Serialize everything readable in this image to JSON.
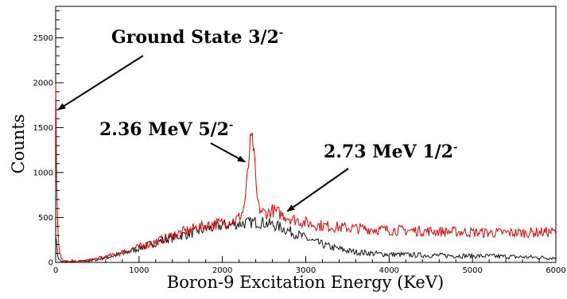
{
  "chart_data": {
    "type": "line",
    "title": "",
    "xlabel": "Boron-9 Excitation Energy (KeV)",
    "ylabel": "Counts",
    "xlim": [
      0,
      6000
    ],
    "ylim": [
      0,
      2850
    ],
    "xticks": [
      0,
      1000,
      2000,
      3000,
      4000,
      5000,
      6000
    ],
    "yticks": [
      0,
      500,
      1000,
      1500,
      2000,
      2500
    ],
    "grid": false,
    "legend": "none",
    "series": [
      {
        "color": "#e60000",
        "x": [
          0,
          15,
          30,
          45,
          60,
          80,
          100,
          150,
          200,
          300,
          400,
          500,
          600,
          700,
          800,
          900,
          1000,
          1100,
          1200,
          1300,
          1400,
          1500,
          1600,
          1700,
          1800,
          1900,
          2000,
          2100,
          2150,
          2200,
          2250,
          2280,
          2310,
          2330,
          2350,
          2370,
          2390,
          2410,
          2440,
          2480,
          2520,
          2560,
          2600,
          2650,
          2700,
          2750,
          2800,
          2850,
          2900,
          3000,
          3100,
          3200,
          3300,
          3400,
          3500,
          3600,
          3700,
          3800,
          3900,
          4000,
          4200,
          4400,
          4600,
          4800,
          5000,
          5200,
          5400,
          5600,
          5800,
          6000
        ],
        "y": [
          1900,
          700,
          300,
          150,
          80,
          30,
          15,
          12,
          10,
          15,
          25,
          40,
          60,
          80,
          110,
          140,
          170,
          200,
          230,
          265,
          300,
          330,
          360,
          390,
          410,
          425,
          440,
          460,
          470,
          500,
          580,
          750,
          1050,
          1300,
          1370,
          1300,
          1050,
          750,
          600,
          560,
          550,
          555,
          580,
          560,
          540,
          520,
          500,
          480,
          470,
          440,
          420,
          410,
          400,
          390,
          385,
          380,
          375,
          370,
          365,
          360,
          355,
          350,
          345,
          340,
          335,
          330,
          330,
          330,
          335,
          340
        ]
      },
      {
        "color": "#111111",
        "x": [
          0,
          15,
          30,
          45,
          60,
          80,
          100,
          150,
          200,
          300,
          400,
          500,
          600,
          700,
          800,
          900,
          1000,
          1100,
          1200,
          1300,
          1400,
          1500,
          1600,
          1700,
          1800,
          1900,
          2000,
          2100,
          2200,
          2300,
          2400,
          2500,
          2600,
          2700,
          2800,
          2900,
          3000,
          3100,
          3200,
          3300,
          3400,
          3500,
          3600,
          3800,
          4000,
          4200,
          4400,
          4600,
          4800,
          5000,
          5200,
          5400,
          5600,
          5800,
          6000
        ],
        "y": [
          350,
          140,
          60,
          30,
          15,
          8,
          5,
          5,
          5,
          10,
          20,
          35,
          55,
          75,
          100,
          130,
          160,
          190,
          220,
          250,
          275,
          300,
          320,
          345,
          370,
          390,
          410,
          420,
          430,
          440,
          450,
          440,
          420,
          390,
          350,
          310,
          270,
          230,
          200,
          170,
          150,
          130,
          115,
          100,
          90,
          85,
          80,
          78,
          75,
          72,
          70,
          65,
          60,
          55,
          50
        ]
      }
    ],
    "annotations": [
      {
        "text": "Ground State 3/2",
        "sup": "-",
        "target": {
          "x": 30,
          "y": 1700
        }
      },
      {
        "text": "2.36 MeV 5/2",
        "sup": "-",
        "target": {
          "x": 2270,
          "y": 1120
        }
      },
      {
        "text": "2.73 MeV 1/2",
        "sup": "-",
        "target": {
          "x": 2780,
          "y": 570
        }
      }
    ]
  }
}
